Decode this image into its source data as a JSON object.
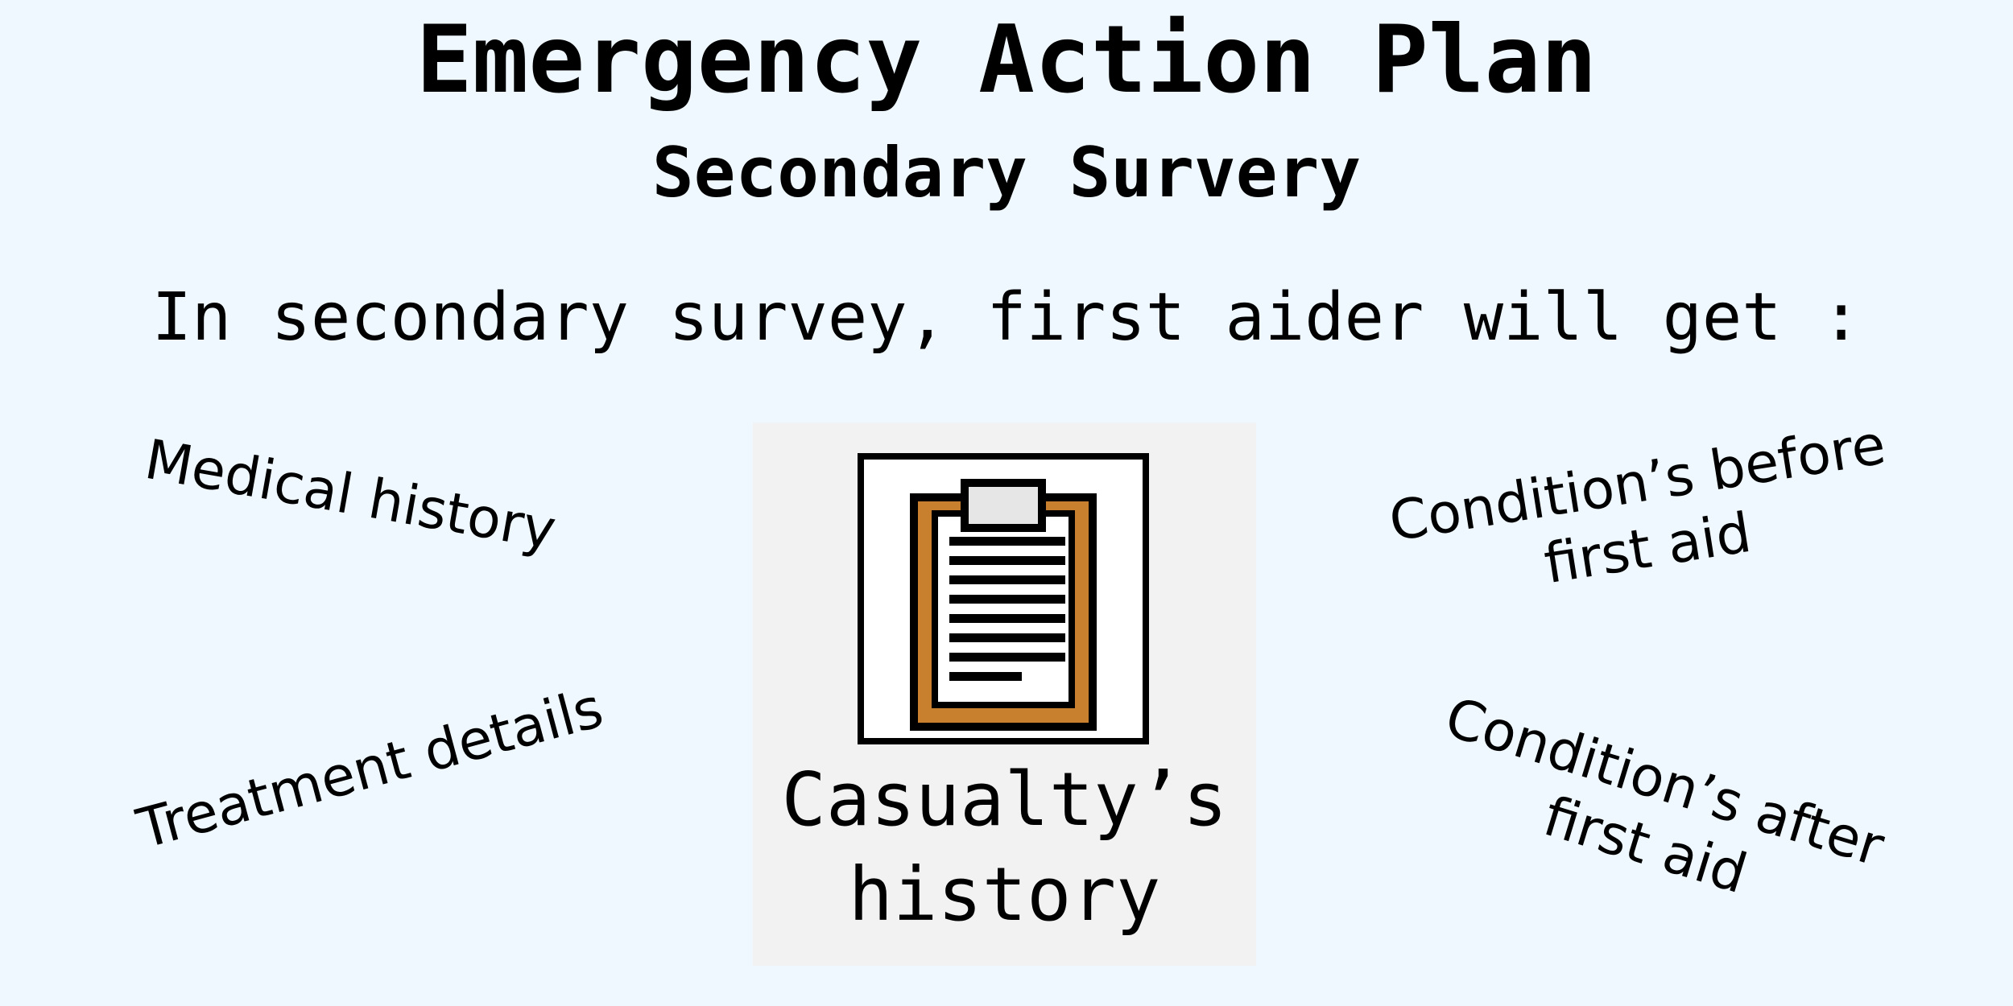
{
  "heading": {
    "title": "Emergency Action Plan",
    "subtitle": "Secondary Survery"
  },
  "intro_text": "In secondary survey, first aider will get :",
  "center": {
    "icon": "clipboard-icon",
    "label_line1": "Casualty’s",
    "label_line2": "history"
  },
  "items": {
    "medical_history": "Medical history",
    "treatment_details": "Treatment details",
    "condition_before": {
      "line1": "Condition’s before",
      "line2": "first aid"
    },
    "condition_after": {
      "line1": "Condition’s after",
      "line2": "first aid"
    }
  },
  "colors": {
    "background": "#f0f8ff",
    "card_background": "#f2f2f2",
    "clipboard_board": "#c87f2e",
    "clipboard_clip": "#e6e6e6",
    "text": "#000000"
  }
}
